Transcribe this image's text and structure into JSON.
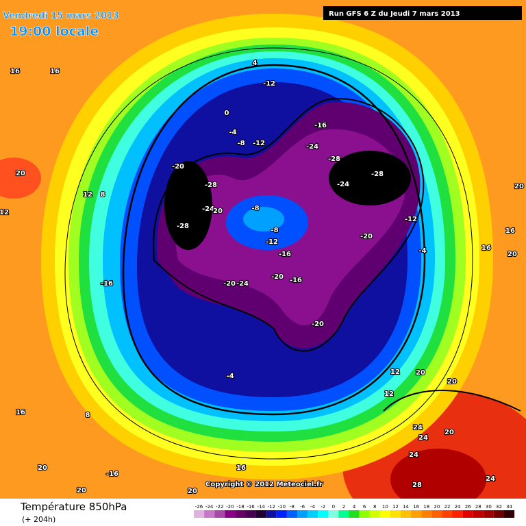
{
  "header": {
    "date": "Vendredi 15 mars 2013",
    "time": "19:00 locale",
    "run": "Run GFS 6 Z du Jeudi 7 mars 2013"
  },
  "copyright": "Copyright © 2012 Meteociel.fr",
  "footer": {
    "title": "Température 850hPa",
    "lead": "(+ 204h)"
  },
  "contour_labels": [
    16,
    16,
    20,
    12,
    8,
    12,
    -16,
    -20,
    -28,
    -24,
    20,
    -28,
    -8,
    -8,
    -12,
    -16,
    -20,
    -24,
    -20,
    -16,
    -20,
    -24,
    -28,
    -24,
    -28,
    -16,
    -12,
    4,
    0,
    -4,
    -8,
    -12,
    -20,
    -12,
    -20,
    -4,
    16,
    16,
    20,
    20,
    -4,
    12,
    20,
    20,
    12,
    24,
    24,
    20,
    24,
    24,
    28,
    8,
    16,
    16,
    -16,
    20,
    20,
    20
  ],
  "colorbar": {
    "ticks": [
      -26,
      -24,
      -22,
      -20,
      -18,
      -16,
      -14,
      -12,
      -10,
      -8,
      -6,
      -4,
      -2,
      0,
      2,
      4,
      6,
      8,
      10,
      12,
      14,
      16,
      18,
      20,
      22,
      24,
      26,
      28,
      30,
      32,
      34
    ],
    "colors": [
      "#e0b0e0",
      "#c878c8",
      "#a848a8",
      "#880088",
      "#680068",
      "#4a0050",
      "#200030",
      "#1010a0",
      "#0020ff",
      "#0060ff",
      "#00a0ff",
      "#00d0ff",
      "#00ffff",
      "#80ffe0",
      "#00ff90",
      "#20e020",
      "#90ff00",
      "#d0ff00",
      "#ffff00",
      "#ffe000",
      "#ffc000",
      "#ffa000",
      "#ff8000",
      "#ff6000",
      "#ff4000",
      "#ff2000",
      "#e00000",
      "#c00000",
      "#a00000",
      "#700000",
      "#300000"
    ]
  }
}
